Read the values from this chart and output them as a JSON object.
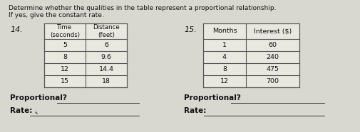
{
  "title_line1": "Determine whether the qualities in the table represent a proportional relationship.",
  "title_line2": "If yes, give the constant rate.",
  "problem14_num": "14.",
  "problem15_num": "15.",
  "table14_headers_row1": [
    "Time",
    "Distance"
  ],
  "table14_headers_row2": [
    "(seconds)",
    "(feet)"
  ],
  "table14_data": [
    [
      "5",
      "6"
    ],
    [
      "8",
      "9.6"
    ],
    [
      "12",
      "14.4"
    ],
    [
      "15",
      "18"
    ]
  ],
  "table15_headers": [
    "Months",
    "Interest ($)"
  ],
  "table15_data": [
    [
      "1",
      "60"
    ],
    [
      "4",
      "240"
    ],
    [
      "8",
      "475"
    ],
    [
      "12",
      "700"
    ]
  ],
  "label_proportional": "Proportional?",
  "label_rate": "Rate:",
  "bg_color": "#d8d8d0",
  "table_bg": "#e8e8e0",
  "line_color": "#555555",
  "text_color": "#111111"
}
